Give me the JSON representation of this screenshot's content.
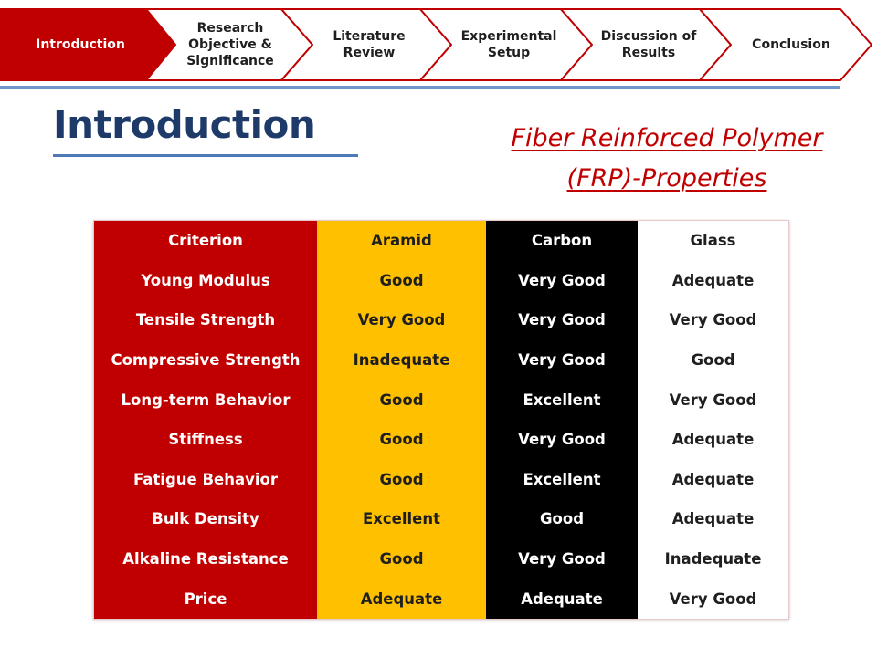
{
  "nav": {
    "steps": [
      {
        "lines": [
          "Introduction"
        ],
        "active": true
      },
      {
        "lines": [
          "Research",
          "Objective &",
          "Significance"
        ],
        "active": false
      },
      {
        "lines": [
          "Literature",
          "Review"
        ],
        "active": false
      },
      {
        "lines": [
          "Experimental",
          "Setup"
        ],
        "active": false
      },
      {
        "lines": [
          "Discussion of",
          "Results"
        ],
        "active": false
      },
      {
        "lines": [
          "Conclusion"
        ],
        "active": false
      }
    ],
    "colors": {
      "active": "#c00000",
      "inactive": "#ffffff",
      "border": "#c00000"
    }
  },
  "slide": {
    "title": "Introduction",
    "subtitle_line1": "Fiber Reinforced Polymer",
    "subtitle_line2": "(FRP)-Properties"
  },
  "table": {
    "header": [
      "Criterion",
      "Aramid",
      "Carbon",
      "Glass"
    ],
    "rows": [
      [
        "Young Modulus",
        "Good",
        "Very Good",
        "Adequate"
      ],
      [
        "Tensile Strength",
        "Very Good",
        "Very Good",
        "Very Good"
      ],
      [
        "Compressive Strength",
        "Inadequate",
        "Very Good",
        "Good"
      ],
      [
        "Long-term Behavior",
        "Good",
        "Excellent",
        "Very Good"
      ],
      [
        "Stiffness",
        "Good",
        "Very Good",
        "Adequate"
      ],
      [
        "Fatigue Behavior",
        "Good",
        "Excellent",
        "Adequate"
      ],
      [
        "Bulk Density",
        "Excellent",
        "Good",
        "Adequate"
      ],
      [
        "Alkaline Resistance",
        "Good",
        "Very Good",
        "Inadequate"
      ],
      [
        "Price",
        "Adequate",
        "Adequate",
        "Very Good"
      ]
    ],
    "column_colors": [
      "#c00000",
      "#ffc000",
      "#000000",
      "#ffffff"
    ]
  }
}
